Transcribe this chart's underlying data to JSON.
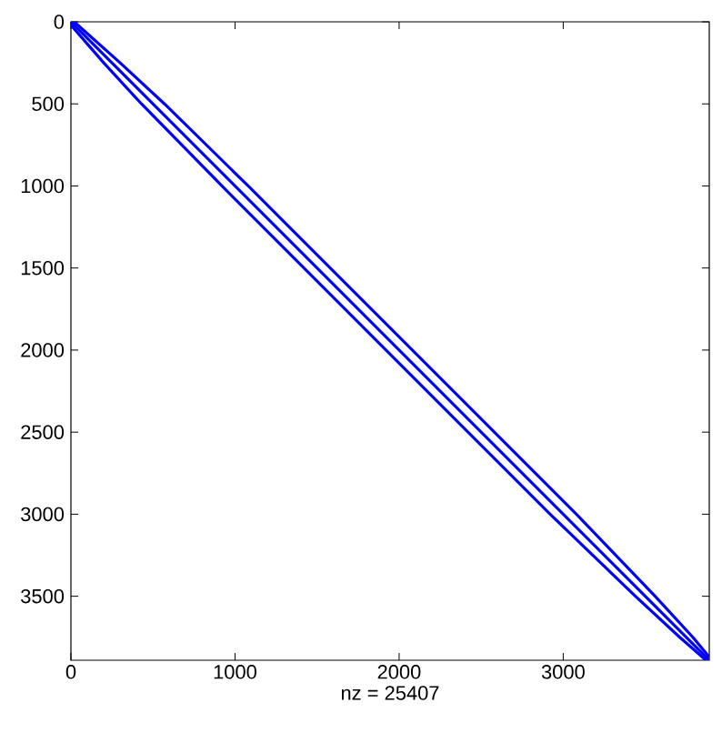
{
  "chart_data": {
    "type": "line",
    "xlabel": "nz = 25407",
    "series": [
      {
        "color": "#0000ff",
        "x": [
          0,
          3890
        ],
        "values": [
          0,
          3890
        ]
      },
      {
        "color": "#0000ff",
        "x": [
          20,
          300,
          570,
          1080,
          2080,
          3080,
          3560,
          3790,
          3890
        ],
        "values": [
          0,
          250,
          500,
          1000,
          2000,
          3000,
          3500,
          3750,
          3870
        ]
      },
      {
        "color": "#0000ff",
        "x": [
          0,
          200,
          430,
          920,
          1920,
          2920,
          3440,
          3710,
          3870
        ],
        "values": [
          20,
          250,
          500,
          1000,
          2000,
          3000,
          3500,
          3750,
          3890
        ]
      }
    ],
    "xlim": [
      0,
      3890
    ],
    "ylim": [
      3890,
      0
    ],
    "xticks": [
      0,
      1000,
      2000,
      3000
    ],
    "yticks": [
      0,
      500,
      1000,
      1500,
      2000,
      2500,
      3000,
      3500
    ],
    "grid": false,
    "marker": "none",
    "line_style": "solid"
  }
}
